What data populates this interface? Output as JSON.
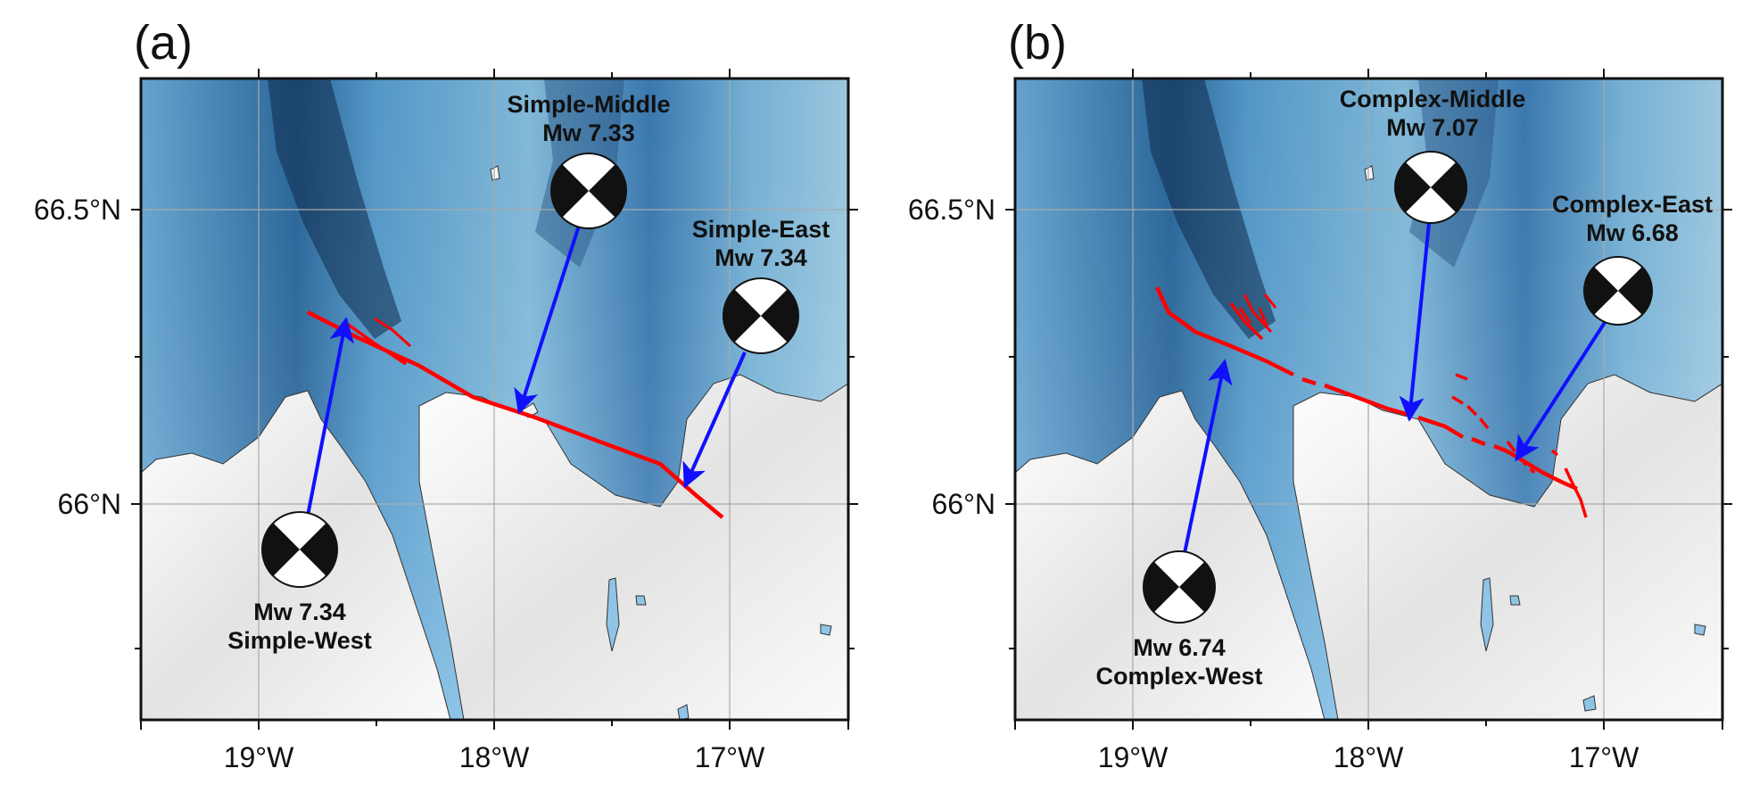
{
  "figure": {
    "panels": [
      {
        "letter": "(a)",
        "x_ticks": [
          "19°W",
          "18°W",
          "17°W"
        ],
        "y_ticks": [
          "66.5°N",
          "66°N"
        ],
        "fault": {
          "type": "simple",
          "color": "#ff0000"
        },
        "events": [
          {
            "name": "Simple-West",
            "magnitude": "Mw 7.34",
            "label_order": "magnitude-first"
          },
          {
            "name": "Simple-Middle",
            "magnitude": "Mw 7.33",
            "label_order": "name-first"
          },
          {
            "name": "Simple-East",
            "magnitude": "Mw 7.34",
            "label_order": "name-first"
          }
        ]
      },
      {
        "letter": "(b)",
        "x_ticks": [
          "19°W",
          "18°W",
          "17°W"
        ],
        "y_ticks": [
          "66.5°N",
          "66°N"
        ],
        "fault": {
          "type": "complex",
          "color": "#ff0000"
        },
        "events": [
          {
            "name": "Complex-West",
            "magnitude": "Mw 6.74",
            "label_order": "magnitude-first"
          },
          {
            "name": "Complex-Middle",
            "magnitude": "Mw 7.07",
            "label_order": "name-first"
          },
          {
            "name": "Complex-East",
            "magnitude": "Mw 6.68",
            "label_order": "name-first"
          }
        ]
      }
    ],
    "colors": {
      "arrow": "#1010ff",
      "fault": "#ff0000",
      "sea_light": "#8cc8ea",
      "sea_dark": "#2a5f93",
      "land": "#f2f2f2",
      "lake": "#8fc4e6"
    }
  }
}
